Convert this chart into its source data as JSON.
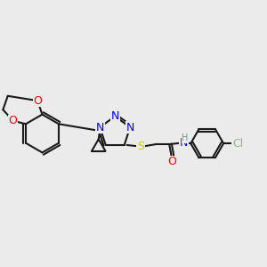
{
  "background_color": "#ebebeb",
  "bond_color": "#1a1a1a",
  "bond_width": 1.5,
  "atom_colors": {
    "N": "#0000ff",
    "O": "#ff0000",
    "S": "#cccc00",
    "Cl": "#7fbf7f",
    "H": "#5f9ea0",
    "C": "#1a1a1a"
  },
  "font_size_atoms": 9,
  "font_size_small": 7
}
